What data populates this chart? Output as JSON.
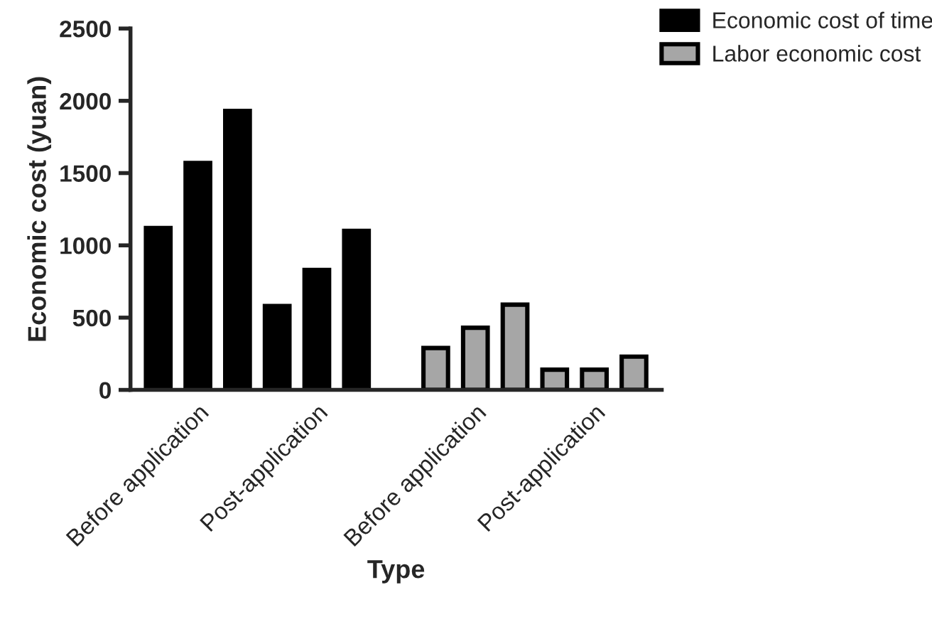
{
  "chart_data": {
    "type": "bar",
    "xlabel": "Type",
    "ylabel": "Economic cost (yuan)",
    "categories": [
      null,
      "Before application",
      null,
      null,
      "Post-application",
      null,
      null,
      null,
      "Before application",
      null,
      null,
      "Post-application",
      null
    ],
    "series": [
      {
        "name": "Economic cost of time",
        "color": "#000000",
        "values": [
          1120,
          1570,
          1930,
          580,
          830,
          1100,
          null,
          null,
          null,
          null,
          null,
          null,
          null
        ]
      },
      {
        "name": "Labor economic cost",
        "color": "#a6a6a6",
        "values": [
          null,
          null,
          null,
          null,
          null,
          null,
          null,
          290,
          430,
          590,
          140,
          140,
          230
        ]
      }
    ],
    "ylim": [
      0,
      2500
    ],
    "yticks": [
      0,
      500,
      1000,
      1500,
      2000,
      2500
    ],
    "grid": false,
    "legend": "top right"
  }
}
